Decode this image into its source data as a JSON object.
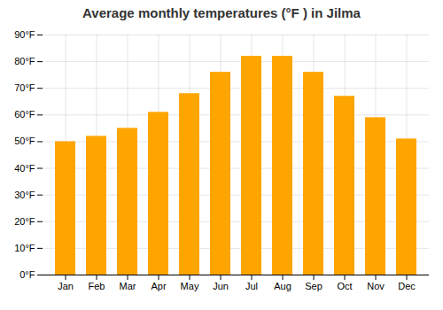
{
  "chart_data": {
    "type": "bar",
    "title": "Average monthly temperatures (°F ) in Jilma",
    "categories": [
      "Jan",
      "Feb",
      "Mar",
      "Apr",
      "May",
      "Jun",
      "Jul",
      "Aug",
      "Sep",
      "Oct",
      "Nov",
      "Dec"
    ],
    "values": [
      50,
      52,
      55,
      61,
      68,
      76,
      82,
      82,
      76,
      67,
      59,
      51
    ],
    "color": "#FFA500",
    "ylim": [
      0,
      90
    ],
    "yticks": [
      {
        "value": 0,
        "label": "0°F"
      },
      {
        "value": 10,
        "label": "10°F"
      },
      {
        "value": 20,
        "label": "20°F"
      },
      {
        "value": 30,
        "label": "30°F"
      },
      {
        "value": 40,
        "label": "40°F"
      },
      {
        "value": 50,
        "label": "50°F"
      },
      {
        "value": 60,
        "label": "60°F"
      },
      {
        "value": 70,
        "label": "70°F"
      },
      {
        "value": 80,
        "label": "80°F"
      },
      {
        "value": 90,
        "label": "90°F"
      }
    ],
    "grid": true
  }
}
